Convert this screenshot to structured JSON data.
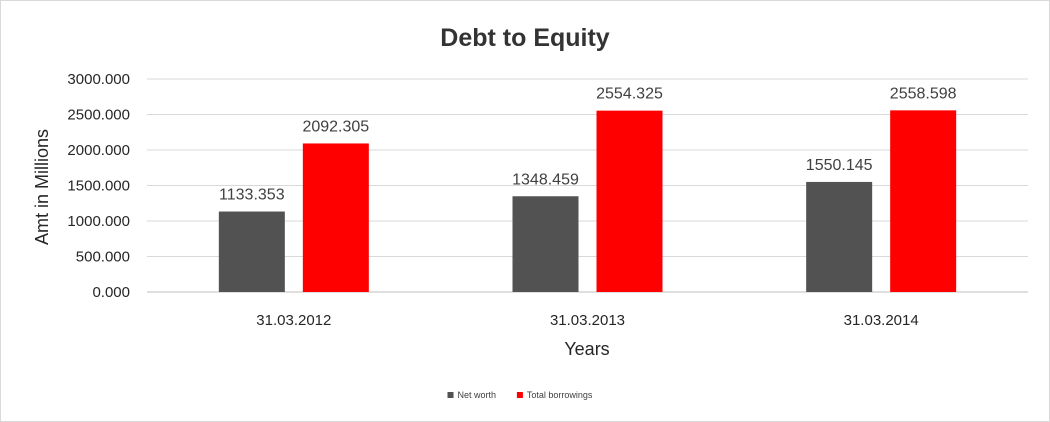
{
  "chart_data": {
    "type": "bar",
    "title": "Debt to Equity",
    "xlabel": "Years",
    "ylabel": "Amt in Millions",
    "categories": [
      "31.03.2012",
      "31.03.2013",
      "31.03.2014"
    ],
    "series": [
      {
        "name": "Net worth",
        "color": "#525252",
        "values": [
          1133.353,
          1348.459,
          1550.145
        ],
        "labels": [
          "1133.353",
          "1348.459",
          "1550.145"
        ]
      },
      {
        "name": "Total borrowings",
        "color": "#ff0000",
        "values": [
          2092.305,
          2554.325,
          2558.598
        ],
        "labels": [
          "2092.305",
          "2554.325",
          "2558.598"
        ]
      }
    ],
    "ylim": [
      0,
      3000
    ],
    "yticks": [
      0,
      500,
      1000,
      1500,
      2000,
      2500,
      3000
    ],
    "ytick_labels": [
      "0.000",
      "500.000",
      "1000.000",
      "1500.000",
      "2000.000",
      "2500.000",
      "3000.000"
    ],
    "grid": true,
    "legend": "bottom"
  }
}
